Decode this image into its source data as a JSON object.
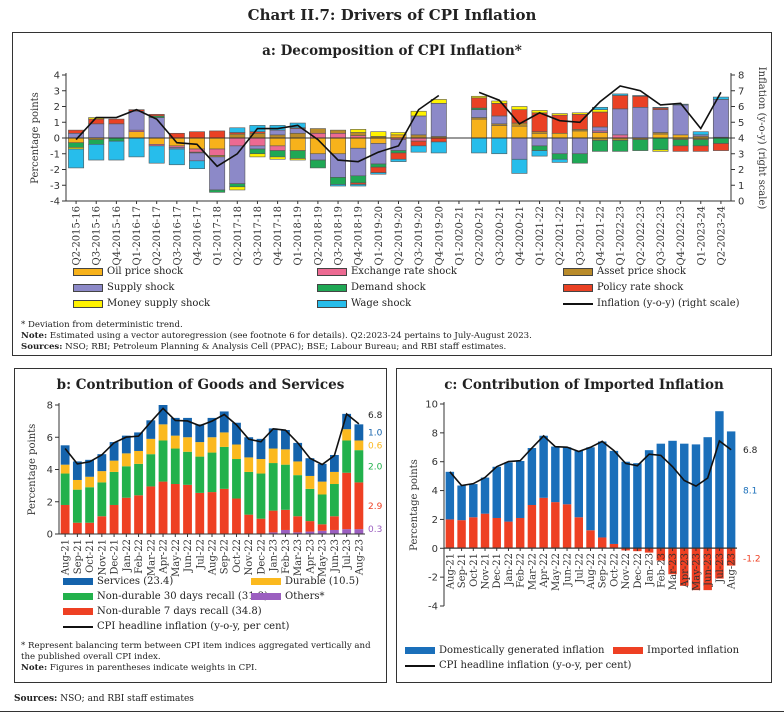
{
  "title": "Chart II.7: Drivers of CPI Inflation",
  "panel_a": {
    "subtitle": "a: Decomposition of CPI Inflation*",
    "footnote": "* Deviation from deterministic trend.",
    "note_label": "Note:",
    "note_text": " Estimated using a vector autoregression (see footnote 6 for details). Q2:2023-24 pertains to July-August 2023.",
    "sources_label": "Sources:",
    "sources_text": " NSO; RBI; Petroleum Planning & Analysis Cell (PPAC); BSE; Labour Bureau; and RBI staff estimates."
  },
  "panel_b": {
    "subtitle": "b: Contribution of Goods and Services",
    "footnote": "* Represent balancing term between CPI item indices aggregated vertically and the published overall CPI index.",
    "note_label": "Note:",
    "note_text": " Figures in parentheses indicate weights in CPI."
  },
  "panel_c": {
    "subtitle": "c: Contribution of Imported Inflation"
  },
  "sources": {
    "label": "Sources:",
    "text": " NSO; and RBI staff estimates"
  },
  "chart_data": [
    {
      "type": "bar",
      "stacked": true,
      "title": "a: Decomposition of CPI Inflation*",
      "ylabel": "Percentage points",
      "ylabel_right": "Inflation (y-o-y) (right scale)",
      "ylim": [
        -4,
        4
      ],
      "ylim_right": [
        0,
        8
      ],
      "yticks": [
        "-4",
        "-3",
        "-2",
        "-1",
        "0",
        "1",
        "2",
        "3",
        "4"
      ],
      "yticks_right": [
        "0",
        "1",
        "2",
        "3",
        "4",
        "5",
        "6",
        "7",
        "8"
      ],
      "legend": "bottom",
      "categories": [
        "Q2-2015-16",
        "Q3-2015-16",
        "Q4-2015-16",
        "Q1-2016-17",
        "Q2-2016-17",
        "Q3-2016-17",
        "Q4-2016-17",
        "Q1-2017-18",
        "Q2-2017-18",
        "Q3-2017-18",
        "Q4-2017-18",
        "Q1-2018-19",
        "Q2-2018-19",
        "Q3-2018-19",
        "Q4-2018-19",
        "Q1-2019-20",
        "Q2-2019-20",
        "Q3-2019-20",
        "Q4-2019-20",
        "Q1-2020-21",
        "Q2-2020-21",
        "Q3-2020-21",
        "Q4-2020-21",
        "Q1-2021-22",
        "Q2-2021-22",
        "Q3-2021-22",
        "Q4-2021-22",
        "Q1-2022-23",
        "Q2-2022-23",
        "Q3-2022-23",
        "Q4-2022-23",
        "Q1-2023-24",
        "Q2-2023-24"
      ],
      "series": [
        {
          "name": "Oil price shock",
          "color": "#F7B21B",
          "values": [
            -0.3,
            -0.1,
            0,
            0.4,
            -0.4,
            -0.5,
            -0.7,
            -0.7,
            0,
            0,
            -0.5,
            -0.8,
            -1.0,
            -1.0,
            -0.65,
            -0.35,
            0.2,
            0,
            0,
            0,
            1.2,
            0.8,
            0.75,
            0.3,
            0.3,
            0.45,
            0.35,
            0,
            0,
            0.25,
            0.2,
            0.1,
            0
          ]
        },
        {
          "name": "Exchange rate shock",
          "color": "#EC6A92",
          "values": [
            0,
            0,
            0,
            0.1,
            -0.1,
            -0.1,
            -0.2,
            -0.4,
            -0.5,
            -0.5,
            -0.3,
            0,
            0.3,
            0.3,
            0.15,
            0,
            -0.1,
            -0.2,
            0,
            0,
            0,
            0,
            0,
            0,
            0,
            0,
            0.1,
            0.2,
            0,
            0,
            0,
            0,
            0
          ]
        },
        {
          "name": "Asset price shock",
          "color": "#B98B2A",
          "values": [
            0,
            0,
            0,
            0,
            0,
            0,
            -0.05,
            -0.1,
            0.25,
            0.3,
            0.2,
            0.3,
            0.3,
            0.2,
            0.2,
            0.1,
            0,
            0.2,
            0.1,
            0,
            0.1,
            0.1,
            0.2,
            0.1,
            0,
            0.1,
            -0.15,
            -0.15,
            -0.1,
            0.1,
            -0.1,
            -0.1,
            0.05
          ]
        },
        {
          "name": "Supply shock",
          "color": "#8C89C8",
          "values": [
            0.3,
            0.9,
            0.9,
            1.2,
            1.3,
            -0.1,
            -0.5,
            -2.1,
            -2.4,
            -0.2,
            0.3,
            0.3,
            -0.4,
            -1.5,
            -1.75,
            -1.3,
            -0.7,
            1.2,
            2.1,
            0,
            0.5,
            0.5,
            -1.35,
            -0.5,
            -1.0,
            -1.0,
            0.25,
            1.65,
            1.95,
            1.45,
            1.9,
            0.1,
            2.4
          ]
        },
        {
          "name": "Demand shock",
          "color": "#1FA855",
          "values": [
            -0.3,
            -0.3,
            -0.2,
            0,
            0.1,
            0,
            0,
            -0.15,
            -0.2,
            -0.3,
            -0.4,
            -0.5,
            -0.5,
            -0.45,
            -0.45,
            -0.2,
            -0.15,
            0,
            0,
            0,
            0.1,
            0,
            0,
            -0.3,
            -0.35,
            -0.6,
            -0.7,
            -0.7,
            -0.7,
            -0.75,
            -0.4,
            -0.4,
            -0.35
          ]
        },
        {
          "name": "Policy rate shock",
          "color": "#EA4124",
          "values": [
            0.2,
            0.3,
            0.3,
            0.1,
            0.1,
            0.3,
            0.4,
            0.45,
            0.1,
            0.1,
            0,
            0.05,
            0,
            0,
            -0.1,
            -0.35,
            -0.4,
            -0.3,
            -0.25,
            0,
            0.65,
            0.8,
            0.85,
            1.2,
            1.15,
            0.95,
            0.95,
            0.85,
            0.7,
            0.1,
            -0.35,
            -0.35,
            -0.45
          ]
        },
        {
          "name": "Money supply shock",
          "color": "#FFF200",
          "values": [
            -0.1,
            0.1,
            0,
            0,
            0,
            0,
            0,
            0,
            -0.2,
            -0.2,
            -0.15,
            -0.1,
            0,
            0,
            0.2,
            0.3,
            0.15,
            0.3,
            0.25,
            0,
            0.1,
            0.15,
            0.2,
            0.15,
            0.1,
            0.1,
            0.15,
            0,
            0,
            -0.1,
            0,
            0,
            0
          ]
        },
        {
          "name": "Wage shock",
          "color": "#27BDEB",
          "values": [
            -1.2,
            -1.0,
            -1.2,
            -1.2,
            -1.1,
            -1.0,
            -0.5,
            0,
            0.3,
            0.4,
            0.3,
            0.3,
            0,
            -0.1,
            -0.1,
            -0.1,
            -0.15,
            -0.4,
            -0.7,
            0,
            -0.95,
            -1.0,
            -0.9,
            -0.35,
            -0.2,
            0,
            0.15,
            0.1,
            0.05,
            0.05,
            0.05,
            0.2,
            0.15
          ]
        }
      ],
      "line": {
        "name": "Inflation (y-o-y) (right scale)",
        "color": "#111111",
        "axis": "right",
        "values": [
          3.9,
          5.3,
          5.3,
          5.8,
          5.2,
          3.7,
          3.6,
          2.2,
          3.0,
          4.6,
          4.6,
          4.8,
          3.9,
          2.6,
          2.5,
          3.1,
          3.5,
          5.8,
          6.7,
          null,
          6.9,
          6.4,
          4.9,
          5.6,
          5.1,
          5.0,
          6.3,
          7.3,
          7.0,
          6.1,
          6.2,
          4.6,
          6.9
        ]
      }
    },
    {
      "type": "bar",
      "stacked": true,
      "title": "b: Contribution of Goods and Services",
      "ylabel": "Percentage points",
      "ylim": [
        0,
        8
      ],
      "yticks": [
        "0",
        "2",
        "4",
        "6",
        "8"
      ],
      "legend": "bottom",
      "categories": [
        "Aug-21",
        "Sep-21",
        "Oct-21",
        "Nov-21",
        "Dec-21",
        "Jan-22",
        "Feb-22",
        "Mar-22",
        "Apr-22",
        "May-22",
        "Jun-22",
        "Jul-22",
        "Aug-22",
        "Sep-22",
        "Oct-22",
        "Nov-22",
        "Dec-22",
        "Jan-23",
        "Feb-23",
        "Mar-23",
        "Apr-23",
        "May-23",
        "Jun-23",
        "Jul-23",
        "Aug-23"
      ],
      "series": [
        {
          "name": "Others*",
          "color": "#9B5FC0",
          "values": [
            0,
            0,
            0,
            0,
            0,
            0,
            0,
            0,
            0,
            0,
            0,
            0,
            0,
            0,
            0,
            0,
            0,
            0.1,
            0.25,
            0.1,
            0.15,
            0.2,
            0.25,
            0.3,
            0.3
          ],
          "end_label": "0.3"
        },
        {
          "name": "Non-durable 7 days recall (34.8)",
          "color": "#EE4023",
          "values": [
            1.8,
            0.7,
            0.7,
            1.1,
            1.8,
            2.25,
            2.4,
            2.95,
            3.25,
            3.1,
            3.05,
            2.55,
            2.6,
            2.8,
            2.2,
            1.2,
            0.95,
            1.35,
            1.25,
            1.0,
            0.65,
            0.4,
            0.85,
            3.5,
            2.9
          ],
          "end_label": "2.9"
        },
        {
          "name": "Non-durable 30 days recall (31.3)",
          "color": "#22B14C",
          "values": [
            1.95,
            2.05,
            2.2,
            2.1,
            2.05,
            1.95,
            1.95,
            2.0,
            2.55,
            2.2,
            2.05,
            2.25,
            2.45,
            2.6,
            2.45,
            2.65,
            2.8,
            2.95,
            2.8,
            2.55,
            2.0,
            1.85,
            2.0,
            2.0,
            2.0
          ],
          "end_label": "2.0"
        },
        {
          "name": "Durable (10.5)",
          "color": "#FBB91F",
          "values": [
            0.55,
            0.6,
            0.65,
            0.7,
            0.7,
            0.8,
            0.8,
            0.95,
            1.0,
            0.8,
            0.9,
            0.9,
            0.95,
            0.9,
            0.9,
            0.9,
            0.9,
            0.9,
            0.95,
            0.85,
            0.8,
            0.8,
            0.75,
            0.7,
            0.6
          ],
          "end_label": "0.6"
        },
        {
          "name": "Services (23.4)",
          "color": "#1463AC",
          "values": [
            1.2,
            1.15,
            1.05,
            1.05,
            1.15,
            1.1,
            1.15,
            1.15,
            1.2,
            1.1,
            1.2,
            1.1,
            1.2,
            1.3,
            1.35,
            1.25,
            1.25,
            1.25,
            1.2,
            1.15,
            1.1,
            1.1,
            1.05,
            0.95,
            1.0
          ],
          "end_label": "1.0"
        }
      ],
      "line": {
        "name": "CPI headline inflation (y-o-y, per cent)",
        "color": "#111111",
        "values": [
          5.3,
          4.35,
          4.48,
          4.91,
          5.66,
          6.01,
          6.07,
          6.95,
          7.79,
          7.04,
          7.01,
          6.71,
          7.0,
          7.41,
          6.77,
          5.88,
          5.72,
          6.52,
          6.44,
          5.66,
          4.7,
          4.31,
          4.87,
          7.44,
          6.83
        ],
        "end_label": "6.8"
      }
    },
    {
      "type": "bar",
      "stacked": true,
      "title": "c: Contribution of Imported Inflation",
      "ylabel": "Percentage points",
      "ylim": [
        -4,
        10
      ],
      "yticks": [
        "-4",
        "-2",
        "0",
        "2",
        "4",
        "6",
        "8",
        "10"
      ],
      "legend": "bottom",
      "categories": [
        "Aug-21",
        "Sep-21",
        "Oct-21",
        "Nov-21",
        "Dec-21",
        "Jan-22",
        "Feb-22",
        "Mar-22",
        "Apr-22",
        "May-22",
        "Jun-22",
        "Jul-22",
        "Aug-22",
        "Sep-22",
        "Oct-22",
        "Nov-22",
        "Dec-22",
        "Jan-23",
        "Feb-23",
        "Mar-23",
        "Apr-23",
        "May-23",
        "Jun-23",
        "Jul-23",
        "Aug-23"
      ],
      "series": [
        {
          "name": "Imported inflation",
          "color": "#EE4023",
          "values": [
            2.0,
            1.95,
            2.15,
            2.4,
            2.1,
            1.85,
            2.1,
            3.0,
            3.5,
            3.2,
            3.05,
            2.15,
            1.25,
            0.75,
            0.3,
            -0.15,
            -0.2,
            -0.3,
            -0.85,
            -1.8,
            -2.6,
            -2.9,
            -2.9,
            -2.1,
            -1.2
          ],
          "end_label": "-1.2"
        },
        {
          "name": "Domestically generated inflation",
          "color": "#1A6FBA",
          "values": [
            3.3,
            2.4,
            2.3,
            2.5,
            3.55,
            4.1,
            3.95,
            3.95,
            4.3,
            3.85,
            3.95,
            4.6,
            5.75,
            6.65,
            6.45,
            6.0,
            5.9,
            6.8,
            7.25,
            7.45,
            7.25,
            7.2,
            7.7,
            9.5,
            8.1
          ],
          "end_label": "8.1"
        }
      ],
      "line": {
        "name": "CPI headline inflation (y-o-y, per cent)",
        "color": "#111111",
        "values": [
          5.3,
          4.35,
          4.48,
          4.91,
          5.66,
          6.01,
          6.07,
          6.95,
          7.79,
          7.04,
          7.01,
          6.71,
          7.0,
          7.41,
          6.77,
          5.88,
          5.72,
          6.52,
          6.44,
          5.66,
          4.7,
          4.31,
          4.87,
          7.44,
          6.83
        ],
        "end_label": "6.8"
      }
    }
  ]
}
